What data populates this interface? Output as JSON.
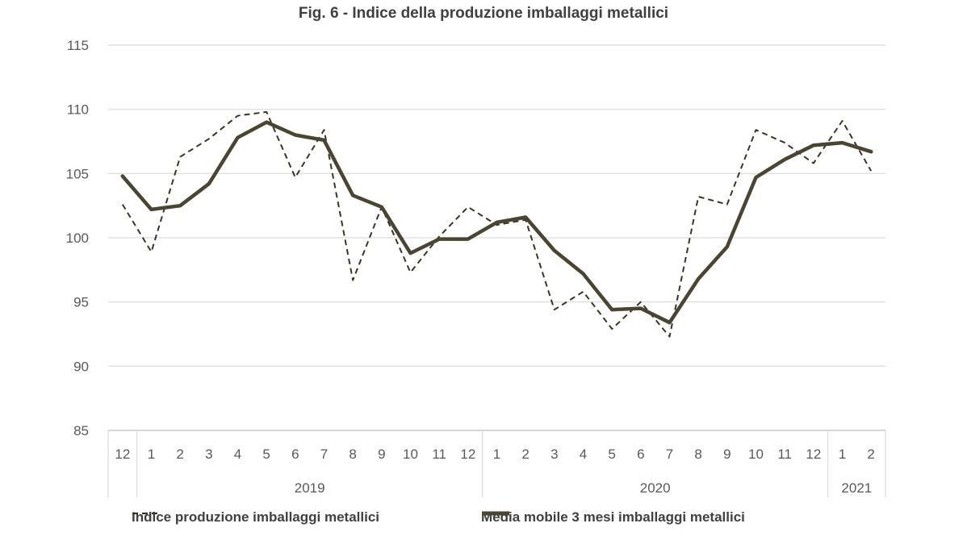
{
  "chart_data": {
    "type": "line",
    "title": "Fig. 6 - Indice della produzione imballaggi metallici",
    "xlabel": "",
    "ylabel": "",
    "ylim": [
      85,
      115
    ],
    "yticks": [
      85,
      90,
      95,
      100,
      105,
      110,
      115
    ],
    "grid": true,
    "legend_position": "bottom",
    "categories": [
      "12",
      "1",
      "2",
      "3",
      "4",
      "5",
      "6",
      "7",
      "8",
      "9",
      "10",
      "11",
      "12",
      "1",
      "2",
      "3",
      "4",
      "5",
      "6",
      "7",
      "8",
      "9",
      "10",
      "11",
      "12",
      "1",
      "2"
    ],
    "year_groups": [
      {
        "label": "",
        "start": 0,
        "end": 0
      },
      {
        "label": "2019",
        "start": 1,
        "end": 12
      },
      {
        "label": "2020",
        "start": 13,
        "end": 24
      },
      {
        "label": "2021",
        "start": 25,
        "end": 26
      }
    ],
    "series": [
      {
        "name": "Indice produzione imballaggi metallici",
        "style": "dashed",
        "color": "#3a3526",
        "values": [
          102.6,
          98.9,
          106.3,
          107.7,
          109.5,
          109.8,
          104.7,
          108.4,
          96.7,
          102.4,
          97.3,
          100.1,
          102.4,
          101.0,
          101.4,
          94.4,
          95.8,
          92.9,
          95.0,
          92.3,
          103.2,
          102.6,
          108.4,
          107.4,
          105.8,
          109.1,
          105.2
        ]
      },
      {
        "name": "Media mobile 3 mesi imballaggi metallici",
        "style": "solid",
        "color": "#4a4530",
        "values": [
          104.8,
          102.2,
          102.5,
          104.2,
          107.8,
          109.0,
          108.0,
          107.6,
          103.3,
          102.4,
          98.8,
          99.9,
          99.9,
          101.2,
          101.6,
          99.0,
          97.2,
          94.4,
          94.5,
          93.4,
          96.8,
          99.3,
          104.7,
          106.1,
          107.2,
          107.4,
          106.7
        ]
      }
    ]
  }
}
